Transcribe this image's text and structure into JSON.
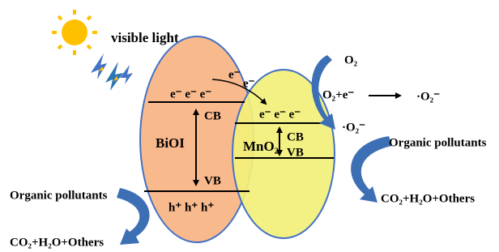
{
  "light": "visible light",
  "bioi": {
    "name": "BiOI",
    "electrons": "e⁻ e⁻ e⁻",
    "cb": "CB",
    "vb": "VB",
    "holes": "h⁺ h⁺ h⁺"
  },
  "mno2": {
    "name": "MnO₂",
    "electrons": "e⁻ e⁻ e⁻",
    "cb": "CB",
    "vb": "VB"
  },
  "transfer": [
    "e⁻",
    "e⁻"
  ],
  "right": {
    "oxygen": "O₂",
    "reaction_left": "O₂+e⁻",
    "reaction_right": "·O₂⁻",
    "radical": "·O₂⁻",
    "pollutants": "Organic pollutants",
    "products": "CO₂+H₂O+Others"
  },
  "left": {
    "pollutants": "Organic pollutants",
    "products": "CO₂+H₂O+Others"
  }
}
